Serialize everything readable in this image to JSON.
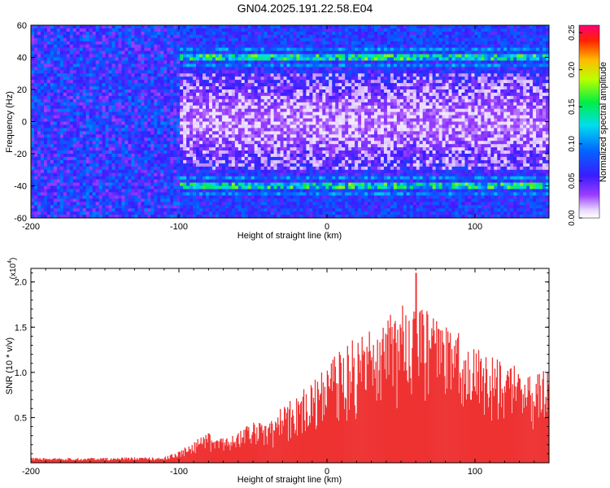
{
  "title": "GN04.2025.191.22.58.E04",
  "chart_data": [
    {
      "type": "heatmap",
      "xlabel": "Height of straight line (km)",
      "ylabel": "Frequency (Hz)",
      "xlim": [
        -200,
        150
      ],
      "ylim": [
        -60,
        60
      ],
      "xticks": [
        -200,
        -100,
        0,
        100
      ],
      "yticks": [
        60,
        40,
        20,
        0,
        -20,
        -40,
        -60
      ],
      "colorbar": {
        "label": "Normalized spectral amplitude",
        "range": [
          0,
          0.26
        ],
        "ticks": [
          "0.00",
          "0.05",
          "0.10",
          "0.15",
          "0.20",
          "0.25"
        ]
      },
      "bands": [
        {
          "frequency": 40,
          "x_start": -100,
          "x_end": 150,
          "peak_amplitude": 0.24
        },
        {
          "frequency": -40,
          "x_start": -100,
          "x_end": 150,
          "peak_amplitude": 0.24
        }
      ]
    },
    {
      "type": "bar",
      "xlabel": "Height of straight line (km)",
      "ylabel": "SNR (10 * v/v)",
      "yscale_label": "(x10",
      "yscale_exp": "4",
      "color": "#ee3333",
      "xlim": [
        -200,
        150
      ],
      "ylim": [
        0,
        2.15
      ],
      "xticks": [
        -200,
        -100,
        0,
        100
      ],
      "yticks": [
        0.5,
        1.0,
        1.5,
        2.0
      ],
      "ytick_labels": [
        "0.5",
        "1.0",
        "1.5",
        "2.0"
      ],
      "envelope_x": [
        -200,
        -150,
        -110,
        -100,
        -90,
        -80,
        -70,
        -60,
        -50,
        -40,
        -30,
        -20,
        -10,
        0,
        10,
        20,
        30,
        40,
        50,
        60,
        70,
        80,
        90,
        100,
        110,
        120,
        130,
        140,
        150
      ],
      "envelope_y": [
        0.05,
        0.05,
        0.06,
        0.12,
        0.22,
        0.3,
        0.25,
        0.32,
        0.45,
        0.38,
        0.58,
        0.7,
        0.82,
        1.02,
        1.15,
        1.28,
        1.4,
        1.5,
        1.58,
        1.62,
        1.5,
        1.4,
        1.3,
        1.18,
        1.08,
        1.0,
        0.98,
        0.95,
        0.92
      ],
      "peak": {
        "x": 60,
        "y": 2.1
      }
    }
  ]
}
